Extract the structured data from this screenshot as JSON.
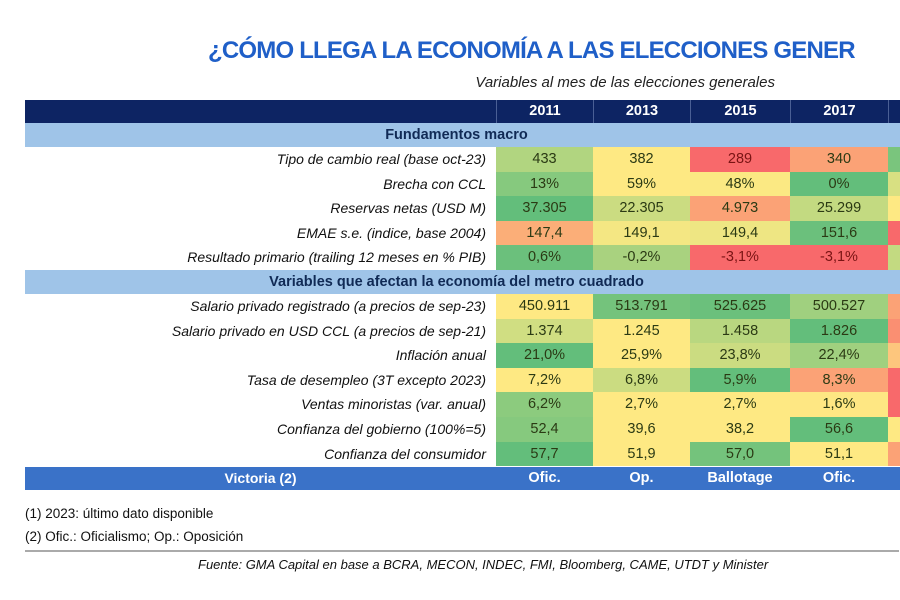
{
  "title": "¿CÓMO LLEGA LA ECONOMÍA A LAS ELECCIONES GENER",
  "subtitle": "Variables al mes de las elecciones generales",
  "columns": [
    "2011",
    "2013",
    "2015",
    "2017",
    ""
  ],
  "sections": [
    {
      "title": "Fundamentos macro",
      "rows": [
        {
          "label": "Tipo de cambio real (base oct-23)",
          "values": [
            "433",
            "382",
            "289",
            "340",
            ""
          ],
          "colors": [
            "#b1d580",
            "#fee983",
            "#f8696b",
            "#fba276",
            "#7ac57d"
          ]
        },
        {
          "label": "Brecha con CCL",
          "values": [
            "13%",
            "59%",
            "48%",
            "0%",
            ""
          ],
          "colors": [
            "#86c97e",
            "#fee983",
            "#fbe983",
            "#63be7b",
            "#d8e082"
          ]
        },
        {
          "label": "Reservas netas (USD M)",
          "values": [
            "37.305",
            "22.305",
            "4.973",
            "25.299",
            ""
          ],
          "colors": [
            "#63be7b",
            "#cbdc81",
            "#fba276",
            "#c3da81",
            "#fee983"
          ]
        },
        {
          "label": "EMAE s.e. (indice, base 2004)",
          "values": [
            "147,4",
            "149,1",
            "149,4",
            "151,6",
            ""
          ],
          "colors": [
            "#fbae78",
            "#f4e783",
            "#eee683",
            "#6bc07c",
            "#f8696b"
          ]
        },
        {
          "label": "Resultado primario (trailing 12 meses en % PIB)",
          "values": [
            "0,6%",
            "-0,2%",
            "-3,1%",
            "-3,1%",
            ""
          ],
          "colors": [
            "#6bc07c",
            "#a9d27f",
            "#f8696b",
            "#f8696b",
            "#c3da81"
          ]
        }
      ]
    },
    {
      "title": "Variables que afectan la economía del metro cuadrado",
      "rows": [
        {
          "label": "Salario privado registrado (a precios de sep-23)",
          "values": [
            "450.911",
            "513.791",
            "525.625",
            "500.527",
            ""
          ],
          "colors": [
            "#fee983",
            "#74c37c",
            "#6bc07c",
            "#a0d07f",
            "#fba276"
          ]
        },
        {
          "label": "Salario privado en USD CCL (a precios de sep-21)",
          "values": [
            "1.374",
            "1.245",
            "1.458",
            "1.826",
            ""
          ],
          "colors": [
            "#d0de82",
            "#fee983",
            "#b9d780",
            "#63be7b",
            "#fa8f72"
          ]
        },
        {
          "label": "Inflación anual",
          "values": [
            "21,0%",
            "25,9%",
            "23,8%",
            "22,4%",
            ""
          ],
          "colors": [
            "#63be7b",
            "#fee983",
            "#cbdc81",
            "#a0d07f",
            "#fdc67d"
          ]
        },
        {
          "label": "Tasa de desempleo (3T excepto 2023)",
          "values": [
            "7,2%",
            "6,8%",
            "5,9%",
            "8,3%",
            ""
          ],
          "colors": [
            "#fee983",
            "#cbdc81",
            "#63be7b",
            "#fba276",
            "#f8696b"
          ]
        },
        {
          "label": "Ventas minoristas (var. anual)",
          "values": [
            "6,2%",
            "2,7%",
            "2,7%",
            "1,6%",
            ""
          ],
          "colors": [
            "#8ccb7e",
            "#fee983",
            "#fee983",
            "#fee783",
            "#f8696b"
          ]
        },
        {
          "label": "Confianza del gobierno (100%=5)",
          "values": [
            "52,4",
            "39,6",
            "38,2",
            "56,6",
            ""
          ],
          "colors": [
            "#86c97e",
            "#fee983",
            "#fee983",
            "#63be7b",
            "#fee983"
          ]
        },
        {
          "label": "Confianza del consumidor",
          "values": [
            "57,7",
            "51,9",
            "57,0",
            "51,1",
            ""
          ],
          "colors": [
            "#63be7b",
            "#fee983",
            "#74c37c",
            "#fee983",
            "#fba276"
          ]
        }
      ]
    }
  ],
  "victory": {
    "label": "Victoria (2)",
    "values": [
      "Ofic.",
      "Op.",
      "Ballotage",
      "Ofic.",
      ""
    ]
  },
  "notes": [
    "(1) 2023: último dato disponible",
    "(2) Ofic.: Oficialismo; Op.: Oposición"
  ],
  "source": "Fuente: GMA Capital en base a BCRA, MECON, INDEC, FMI, Bloomberg, CAME, UTDT y Minister",
  "colors": {
    "header": "#0d2463",
    "section": "#9fc4e8",
    "victory": "#3a72c8",
    "title": "#1f5fc8"
  }
}
